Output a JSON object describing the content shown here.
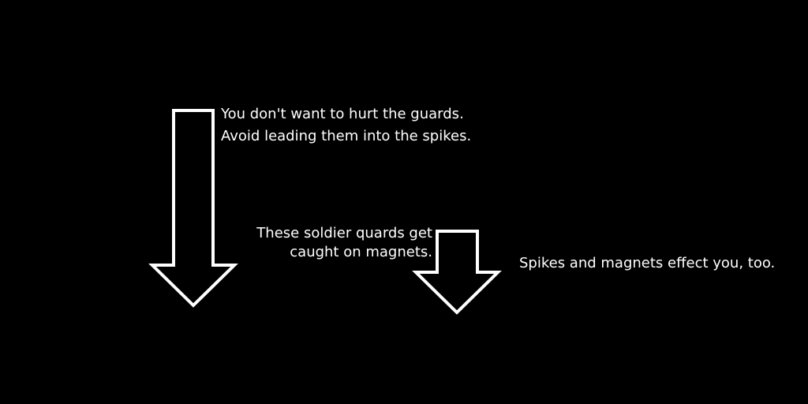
{
  "colors": {
    "background": "#000000",
    "foreground": "#ffffff"
  },
  "hints": {
    "guards": {
      "line1": "You don't want to hurt the guards.",
      "line2": "Avoid leading them into the spikes."
    },
    "soldiers": {
      "line1": "These soldier quards get",
      "line2": "caught on magnets."
    },
    "spikes": {
      "line1": "Spikes and magnets effect you, too."
    }
  },
  "arrows": [
    {
      "name": "left-down-arrow-icon",
      "direction": "down"
    },
    {
      "name": "right-down-arrow-icon",
      "direction": "down"
    }
  ]
}
